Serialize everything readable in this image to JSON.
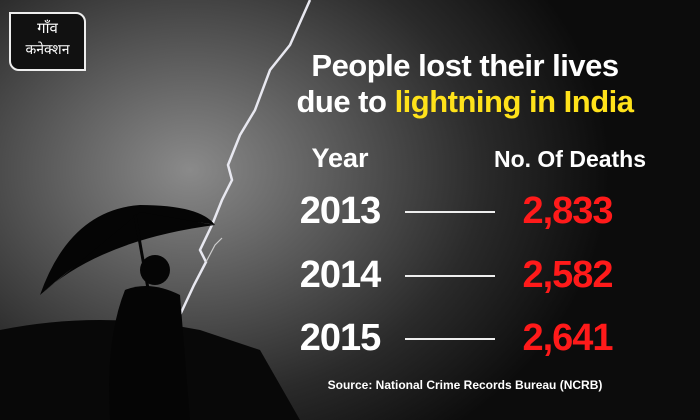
{
  "logo": {
    "line1": "गाँव",
    "line2": "कनेक्शन"
  },
  "title": {
    "line1": "People lost their lives",
    "line2_prefix": "due to ",
    "line2_highlight": "lightning in India"
  },
  "colors": {
    "highlight": "#ffe21a",
    "values": "#ff1a1a"
  },
  "chart_data": {
    "type": "table",
    "columns": [
      "Year",
      "No. Of Deaths"
    ],
    "rows": [
      {
        "year": "2013",
        "deaths": "2,833"
      },
      {
        "year": "2014",
        "deaths": "2,582"
      },
      {
        "year": "2015",
        "deaths": "2,641"
      }
    ]
  },
  "source": "Source: National Crime Records Bureau (NCRB)"
}
